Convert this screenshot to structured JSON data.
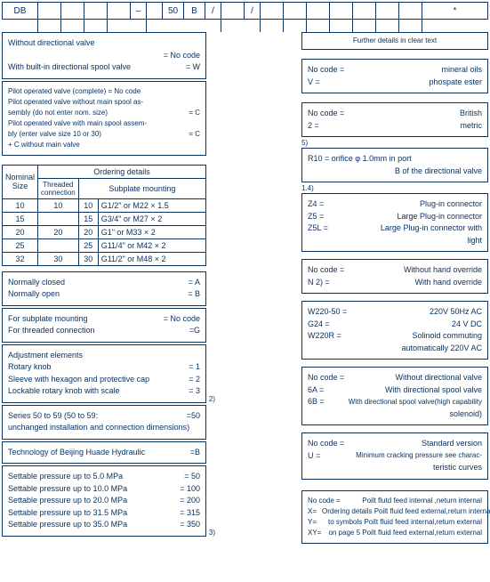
{
  "top": {
    "c0": "DB",
    "c5": "–",
    "c7": "50",
    "c8": "B",
    "c9": "/",
    "c11": "/",
    "c_last": "*"
  },
  "left": {
    "box1": {
      "l1": "Without directional valve",
      "l1v": "= No code",
      "l2": "With built-in directional spool valve",
      "l2v": "= W"
    },
    "box2": {
      "l1": "Pilot operated valve (complete)  = No code",
      "l2": "Pilot operated valve without main spool as-",
      "l3": "sembly (do not enter nom. size)",
      "l3v": "= C",
      "l4": "Pilot operated valve with main spool assem-",
      "l5": "bly (enter valve size 10 or 30)",
      "l5v": "= C",
      "l6": "+ C  without main valve"
    },
    "ordering_title": "Ordering details",
    "ord": {
      "h_nom": "Nominal Size",
      "h_thr": "Threaded connection",
      "h_sub": "Subplate  mounting",
      "rows": [
        [
          "10",
          "10",
          "10",
          "G1/2\" or M22 × 1.5"
        ],
        [
          "15",
          "",
          "15",
          "G3/4\" or M27 × 2"
        ],
        [
          "20",
          "20",
          "20",
          "G1\" or M33 × 2"
        ],
        [
          "25",
          "",
          "25",
          "G11/4\" or M42 × 2"
        ],
        [
          "32",
          "30",
          "30",
          "G11/2\" or M48 × 2"
        ]
      ]
    },
    "box_nc": {
      "l1": "Normally closed",
      "l1v": "= A",
      "l2": "Normally open",
      "l2v": "= B"
    },
    "box_mnt": {
      "l1": "For subplate mounting",
      "l1v": "= No code",
      "l2": "For threaded connection",
      "l2v": "=G"
    },
    "box_adj": {
      "t": "Adjustment elements",
      "l1": "Rotary knob",
      "l1v": "= 1",
      "l2": "Sleeve with hexagon and protective cap",
      "l2v": "= 2",
      "l3": "Lockable rotary knob with scale",
      "l3v": "= 3"
    },
    "box_series": {
      "l1": "Series 50 to 59 (50 to 59:",
      "l1v": "=50",
      "l2": "unchanged installation and connection dimensions)"
    },
    "box_tech": {
      "l1": "Technology of Beijing Huade Hydraulic",
      "l1v": "=B"
    },
    "box_press": {
      "l1": "Settable pressure up to 5.0 MPa",
      "l1v": "=  50",
      "l2": "Settable pressure up to 10.0 MPa",
      "l2v": "= 100",
      "l3": "Settable pressure up to 20.0 MPa",
      "l3v": "= 200",
      "l4": "Settable pressure up to 31.5 MPa",
      "l4v": "= 315",
      "l5": "Settable pressure up to 35.0 MPa",
      "l5v": "= 350"
    },
    "sidenum2": "2)",
    "sidenum3": "3)"
  },
  "right": {
    "further": "Further details in clear text",
    "oil": {
      "l1l": "No code =",
      "l1r": "mineral oils",
      "l2l": "V =",
      "l2r": "phospate ester"
    },
    "units": {
      "l1l": "No code =",
      "l1r": "British",
      "l2l": "2 =",
      "l2r": "metric"
    },
    "note5": "5)",
    "r10": {
      "l1": "R10 =  orifice φ 1.0mm in port",
      "l2": "B of the directional valve"
    },
    "note14": "1.4)",
    "zbox": {
      "l1l": "Z4 =",
      "l1r": "Plug-in connector",
      "l2l": "Z5 =",
      "l2r": "Large Plug-in connector",
      "l3l": "Z5L =",
      "l3r": "Large Plug-in connector with",
      "l3r2": "light"
    },
    "hand": {
      "l1l": "No code =",
      "l1r": "Without hand override",
      "l2l": "N 2) =",
      "l2r": "With hand override"
    },
    "volt": {
      "l1l": "W220-50 =",
      "l1r": "220V 50Hz AC",
      "l2l": "G24 =",
      "l2r": "24 V DC",
      "l3l": "W220R =",
      "l3r": "Solinoid commuting",
      "l3r2": "automatically 220V AC"
    },
    "dir": {
      "l1l": "No code =",
      "l1r": "Without directional valve",
      "l2l": "6A =",
      "l2r": "With directional spool valve",
      "l3l": "6B =",
      "l3r": "With directional spool valve(high capability",
      "l3r2": "solenoid)"
    },
    "std": {
      "l1l": "No code =",
      "l1r": "Standard version",
      "l2l": "U =",
      "l2r": "Minimum cracking pressure see charac-",
      "l2r2": "teristic curves"
    },
    "feed": {
      "l1l": "No code =",
      "l1r": "Poilt flutd feed internal ,neturn internal",
      "l2l": "X=",
      "l2r": "Ordering details Poilt fluid feed external,return internal",
      "l3l": "Y=",
      "l3r": "to symbols Poilt fluid feed internal,return external",
      "l4l": "XY=",
      "l4r": "on page 5 Poilt fluid feed external,return external"
    }
  }
}
